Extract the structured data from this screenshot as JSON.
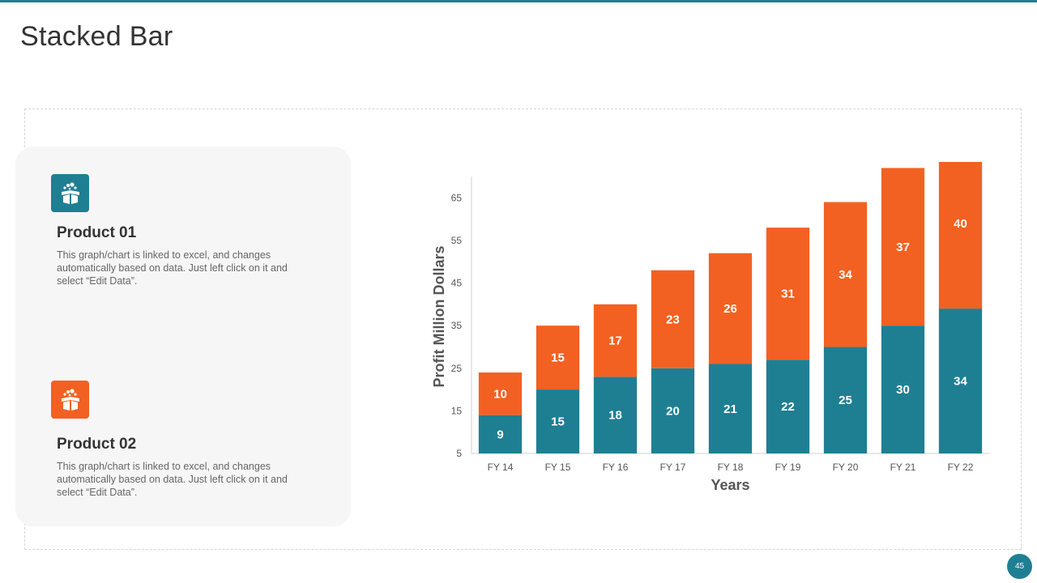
{
  "slide": {
    "title": "Stacked Bar",
    "page_number": "45"
  },
  "products": [
    {
      "title": "Product 01",
      "description": "This graph/chart is linked to excel, and changes automatically based on data. Just left click on it and select “Edit Data”.",
      "icon": "gift-box-icon",
      "color": "#1f7f92"
    },
    {
      "title": "Product 02",
      "description": "This graph/chart is linked to excel, and changes automatically based on data. Just left click on it and select “Edit Data”.",
      "icon": "gift-box-icon",
      "color": "#f26122"
    }
  ],
  "chart_data": {
    "type": "bar",
    "stacked": true,
    "categories": [
      "FY 14",
      "FY 15",
      "FY 16",
      "FY 17",
      "FY 18",
      "FY 19",
      "FY 20",
      "FY 21",
      "FY 22"
    ],
    "series": [
      {
        "values": [
          9,
          15,
          18,
          20,
          21,
          22,
          25,
          30,
          34
        ],
        "color": "#1f7f92"
      },
      {
        "values": [
          10,
          15,
          17,
          23,
          26,
          31,
          34,
          37,
          40
        ],
        "color": "#f26122"
      }
    ],
    "xlabel": "Years",
    "ylabel": "Profit Million Dollars",
    "ylim": [
      5,
      70
    ],
    "yticks": [
      5,
      15,
      25,
      35,
      45,
      55,
      65
    ],
    "grid": false,
    "legend": "none"
  }
}
